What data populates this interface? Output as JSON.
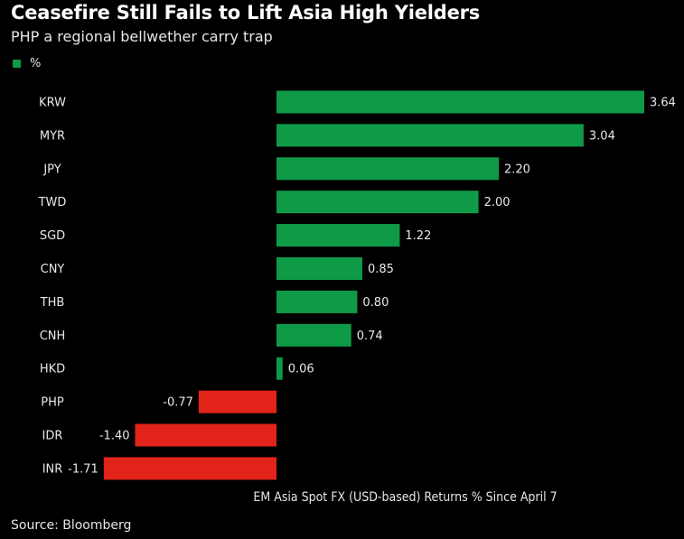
{
  "title": "Ceasefire Still Fails to Lift Asia High Yielders",
  "subtitle": "PHP a regional bellwether carry trap",
  "legend": {
    "label": "%"
  },
  "source": "Source: Bloomberg",
  "colors": {
    "positive": "#0f9a48",
    "negative": "#e2231a",
    "background": "#000000",
    "legend_swatch": "#0f9a48"
  },
  "chart_data": {
    "type": "bar",
    "orientation": "horizontal",
    "categories": [
      "KRW",
      "MYR",
      "JPY",
      "TWD",
      "SGD",
      "CNY",
      "THB",
      "CNH",
      "HKD",
      "PHP",
      "IDR",
      "INR"
    ],
    "values": [
      3.64,
      3.04,
      2.2,
      2.0,
      1.22,
      0.85,
      0.8,
      0.74,
      0.06,
      -0.77,
      -1.4,
      -1.71
    ],
    "value_labels": [
      "3.64",
      "3.04",
      "2.20",
      "2.00",
      "1.22",
      "0.85",
      "0.80",
      "0.74",
      "0.06",
      "-0.77",
      "-1.40",
      "-1.71"
    ],
    "xlabel": "EM Asia Spot FX (USD-based) Returns % Since April 7",
    "ylabel": "",
    "xlim": [
      -1.71,
      3.64
    ],
    "grid": false,
    "legend_position": "top-left"
  }
}
